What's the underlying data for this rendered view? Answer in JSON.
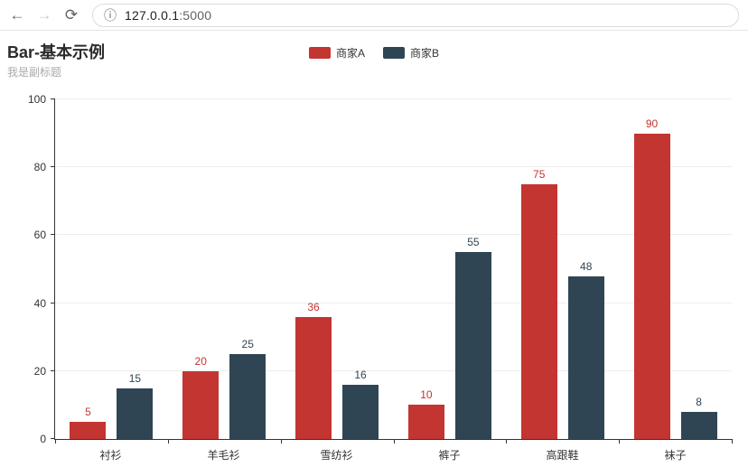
{
  "browser": {
    "host": "127.0.0.1",
    "port": ":5000",
    "icons": {
      "back": "←",
      "forward": "→",
      "reload": "⟳",
      "info": "ⓘ"
    }
  },
  "page": {
    "title": "Bar-基本示例",
    "subtitle": "我是副标题"
  },
  "legend": [
    {
      "label": "商家A",
      "color": "#c23531"
    },
    {
      "label": "商家B",
      "color": "#2f4554"
    }
  ],
  "chart_data": {
    "type": "bar",
    "title": "Bar-基本示例",
    "subtitle": "我是副标题",
    "categories": [
      "衬衫",
      "羊毛衫",
      "雪纺衫",
      "裤子",
      "高跟鞋",
      "袜子"
    ],
    "series": [
      {
        "name": "商家A",
        "color": "#c23531",
        "values": [
          5,
          20,
          36,
          10,
          75,
          90
        ]
      },
      {
        "name": "商家B",
        "color": "#2f4554",
        "values": [
          15,
          25,
          16,
          55,
          48,
          8
        ]
      }
    ],
    "xlabel": "",
    "ylabel": "",
    "ylim": [
      0,
      100
    ],
    "yticks": [
      0,
      20,
      40,
      60,
      80,
      100
    ],
    "grid": true,
    "legend_position": "top-center",
    "value_labels": "above-bars, colored per series"
  }
}
